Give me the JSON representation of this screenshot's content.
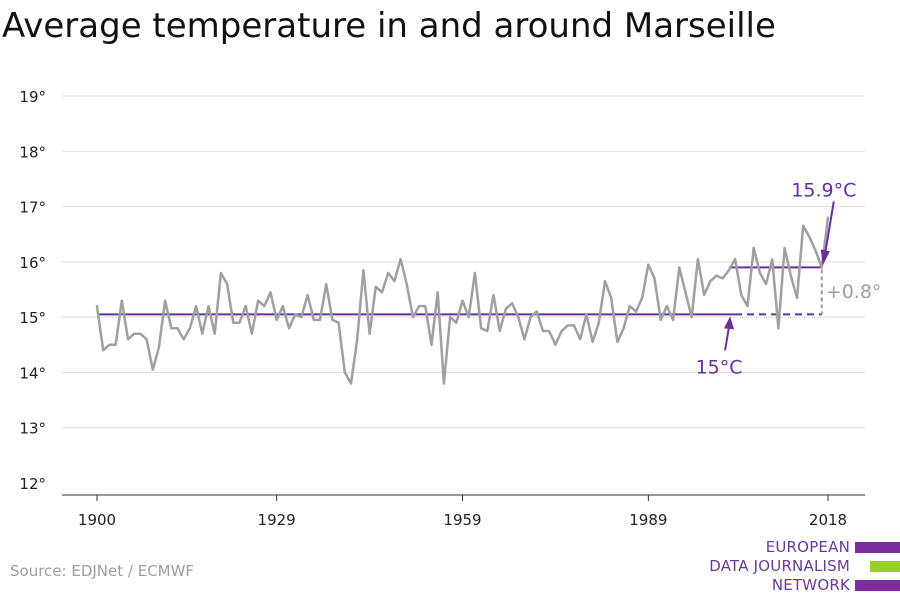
{
  "title": "Average temperature in and around Marseille",
  "source": "Source: EDJNet / ECMWF",
  "logo": {
    "lines": [
      "EUROPEAN",
      "DATA JOURNALISM",
      "NETWORK"
    ],
    "colors": [
      "#7b2d9c",
      "#96d12a",
      "#7b2d9c"
    ]
  },
  "colors": {
    "series": "#a0a0a0",
    "accent": "#6a2d9c",
    "grid": "#dddddd",
    "diff": "#a0a0a0"
  },
  "chart_data": {
    "type": "line",
    "title": "Average temperature in and around Marseille",
    "xlim": [
      1900,
      2018
    ],
    "ylim": [
      12,
      19
    ],
    "x_ticks": [
      1900,
      1929,
      1959,
      1989,
      2018
    ],
    "y_ticks": [
      12,
      13,
      14,
      15,
      16,
      17,
      18,
      19
    ],
    "y_tick_suffix": "°",
    "grid": "horizontal",
    "series": [
      {
        "x": [
          1900,
          1901,
          1902,
          1903,
          1904,
          1905,
          1906,
          1907,
          1908,
          1909,
          1910,
          1911,
          1912,
          1913,
          1914,
          1915,
          1916,
          1917,
          1918,
          1919,
          1920,
          1921,
          1922,
          1923,
          1924,
          1925,
          1926,
          1927,
          1928,
          1929,
          1930,
          1931,
          1932,
          1933,
          1934,
          1935,
          1936,
          1937,
          1938,
          1939,
          1940,
          1941,
          1942,
          1943,
          1944,
          1945,
          1946,
          1947,
          1948,
          1949,
          1950,
          1951,
          1952,
          1953,
          1954,
          1955,
          1956,
          1957,
          1958,
          1959,
          1960,
          1961,
          1962,
          1963,
          1964,
          1965,
          1966,
          1967,
          1968,
          1969,
          1970,
          1971,
          1972,
          1973,
          1974,
          1975,
          1976,
          1977,
          1978,
          1979,
          1980,
          1981,
          1982,
          1983,
          1984,
          1985,
          1986,
          1987,
          1988,
          1989,
          1990,
          1991,
          1992,
          1993,
          1994,
          1995,
          1996,
          1997,
          1998,
          1999,
          2000,
          2001,
          2002,
          2003,
          2004,
          2005,
          2006,
          2007,
          2008,
          2009,
          2010,
          2011,
          2012,
          2013,
          2014,
          2015,
          2016,
          2017,
          2018
        ],
        "values": [
          15.2,
          14.4,
          14.5,
          14.5,
          15.3,
          14.6,
          14.7,
          14.7,
          14.6,
          14.05,
          14.45,
          15.3,
          14.8,
          14.8,
          14.6,
          14.8,
          15.2,
          14.7,
          15.2,
          14.7,
          15.8,
          15.6,
          14.9,
          14.9,
          15.2,
          14.7,
          15.3,
          15.2,
          15.45,
          14.95,
          15.2,
          14.8,
          15.05,
          15.0,
          15.4,
          14.95,
          14.95,
          15.6,
          14.95,
          14.9,
          14.0,
          13.8,
          14.6,
          15.85,
          14.7,
          15.55,
          15.45,
          15.8,
          15.65,
          16.05,
          15.6,
          15.0,
          15.2,
          15.2,
          14.5,
          15.45,
          13.8,
          15.0,
          14.9,
          15.3,
          15.0,
          15.8,
          14.8,
          14.75,
          15.4,
          14.75,
          15.15,
          15.25,
          15.0,
          14.6,
          15.0,
          15.1,
          14.75,
          14.75,
          14.5,
          14.75,
          14.85,
          14.85,
          14.6,
          15.05,
          14.55,
          14.9,
          15.65,
          15.35,
          14.55,
          14.8,
          15.2,
          15.1,
          15.35,
          15.95,
          15.7,
          14.95,
          15.2,
          14.95,
          15.9,
          15.45,
          15.0,
          16.05,
          15.4,
          15.65,
          15.75,
          15.7,
          15.85,
          16.05,
          15.4,
          15.2,
          16.25,
          15.8,
          15.6,
          16.05,
          14.8,
          16.25,
          15.75,
          15.35,
          16.65,
          16.45,
          16.2,
          15.9,
          16.8
        ]
      }
    ],
    "reference_lines": [
      {
        "label": "15°C",
        "value": 15.05,
        "from": 1900,
        "to": 2003
      },
      {
        "label": "15.9°C",
        "value": 15.9,
        "from": 2002,
        "to": 2017
      }
    ],
    "difference_label": "+0.8°"
  }
}
